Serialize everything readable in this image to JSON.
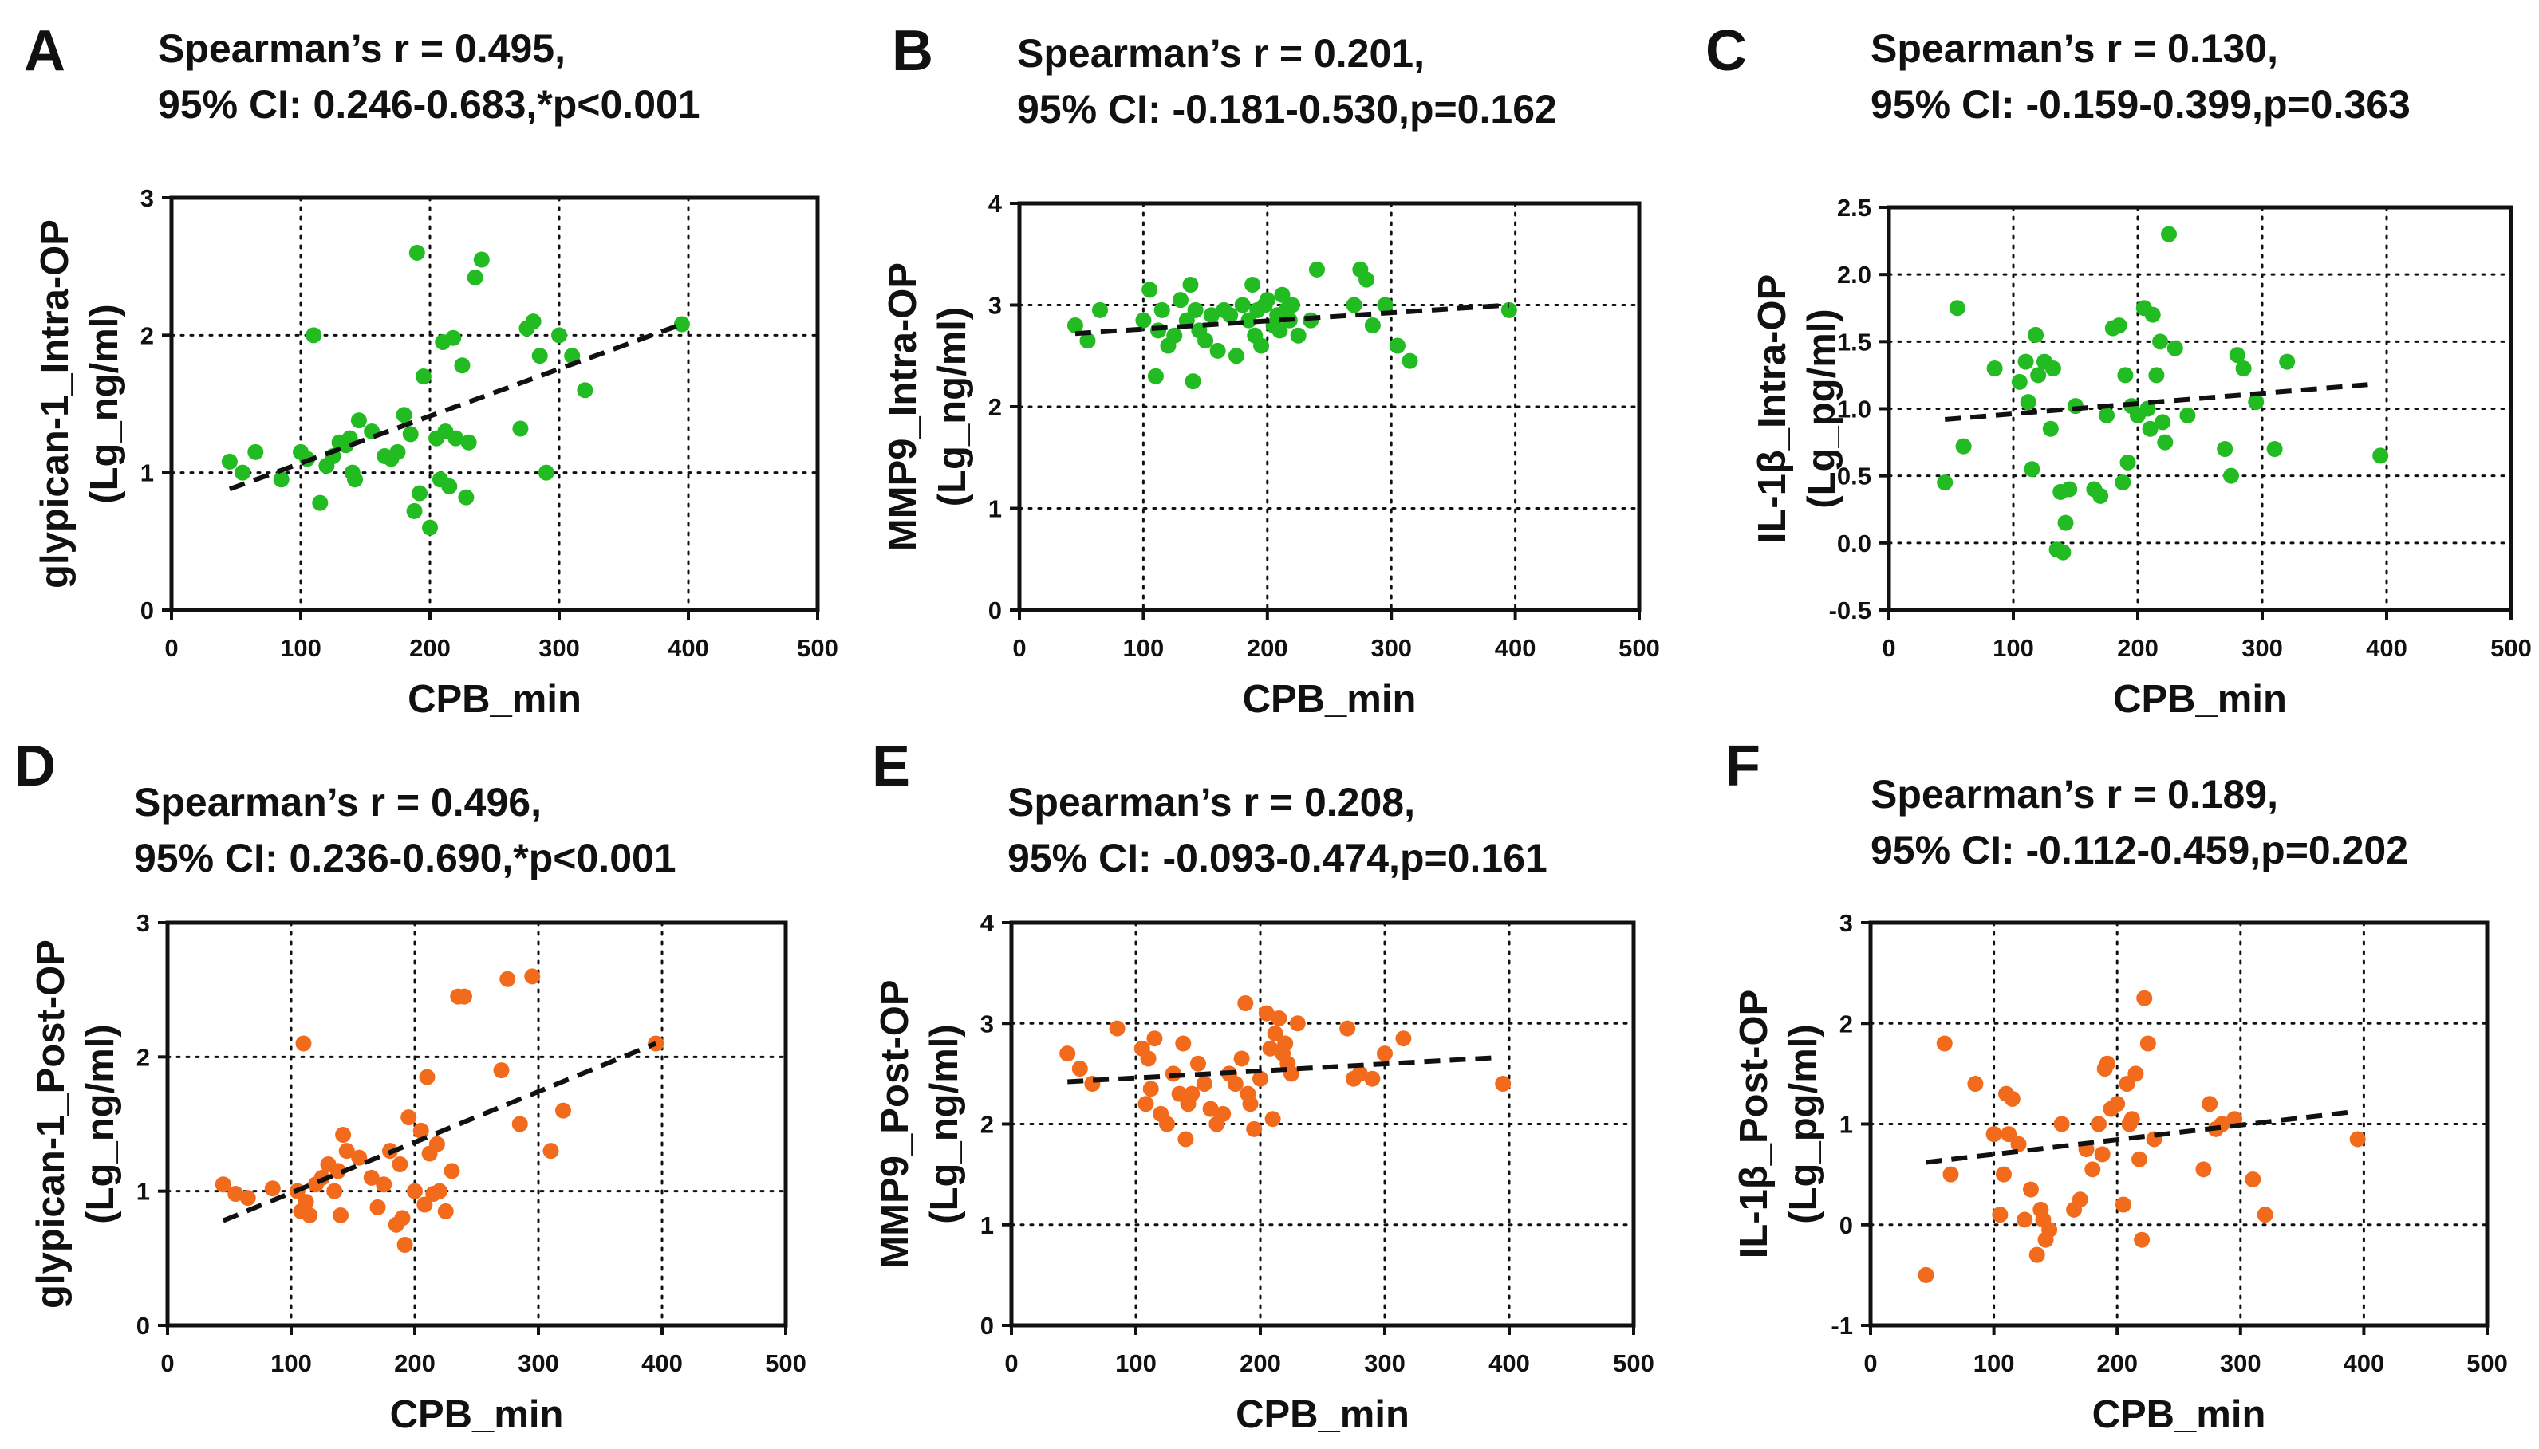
{
  "colors": {
    "intra_op_points": "#22bb22",
    "post_op_points": "#f26b1d",
    "fit_line": "#111111"
  },
  "chart_data": [
    {
      "panel": "A",
      "type": "scatter",
      "stats": [
        "Spearman’s r = 0.495,",
        "95% CI: 0.246-0.683,*p<0.001"
      ],
      "xlabel": "CPB_min",
      "ylabel": [
        "glypican-1_Intra-OP",
        "(Lg_ng/ml)"
      ],
      "xlim": [
        0,
        500
      ],
      "ylim": [
        0,
        3
      ],
      "xticks": [
        0,
        100,
        200,
        300,
        400,
        500
      ],
      "yticks": [
        0,
        1,
        2,
        3
      ],
      "series": [
        {
          "name": "Intra-OP",
          "color": "#22bb22",
          "x": [
            45,
            55,
            65,
            85,
            100,
            105,
            110,
            115,
            120,
            125,
            130,
            135,
            138,
            140,
            142,
            145,
            155,
            165,
            170,
            175,
            180,
            185,
            188,
            190,
            192,
            195,
            200,
            205,
            208,
            210,
            212,
            215,
            218,
            220,
            225,
            228,
            230,
            235,
            240,
            270,
            275,
            280,
            285,
            290,
            300,
            310,
            320,
            395
          ],
          "y": [
            1.08,
            1.0,
            1.15,
            0.95,
            1.15,
            1.1,
            2.0,
            0.78,
            1.05,
            1.12,
            1.22,
            1.2,
            1.25,
            1.0,
            0.95,
            1.38,
            1.3,
            1.12,
            1.1,
            1.15,
            1.42,
            1.28,
            0.72,
            2.6,
            0.85,
            1.7,
            0.6,
            1.25,
            0.95,
            1.95,
            1.3,
            0.9,
            1.98,
            1.25,
            1.78,
            0.82,
            1.22,
            2.42,
            2.55,
            1.32,
            2.05,
            2.1,
            1.85,
            1.0,
            2.0,
            1.85,
            1.6,
            2.08
          ]
        }
      ],
      "fit_line": {
        "x": [
          45,
          395
        ],
        "y": [
          0.88,
          2.08
        ]
      }
    },
    {
      "panel": "B",
      "type": "scatter",
      "stats": [
        "Spearman’s r = 0.201,",
        "95% CI: -0.181-0.530,p=0.162"
      ],
      "xlabel": "CPB_min",
      "ylabel": [
        "MMP9_Intra-OP",
        "(Lg_ng/ml)"
      ],
      "xlim": [
        0,
        500
      ],
      "ylim": [
        0,
        4
      ],
      "xticks": [
        0,
        100,
        200,
        300,
        400,
        500
      ],
      "yticks": [
        0,
        1,
        2,
        3,
        4
      ],
      "series": [
        {
          "name": "Intra-OP",
          "color": "#22bb22",
          "x": [
            45,
            55,
            65,
            100,
            105,
            110,
            112,
            115,
            120,
            125,
            130,
            135,
            138,
            140,
            142,
            145,
            150,
            155,
            160,
            165,
            170,
            175,
            180,
            185,
            188,
            190,
            192,
            195,
            198,
            200,
            205,
            208,
            210,
            212,
            215,
            218,
            220,
            225,
            235,
            240,
            270,
            275,
            280,
            285,
            295,
            305,
            315,
            395
          ],
          "y": [
            2.8,
            2.65,
            2.95,
            2.85,
            3.15,
            2.3,
            2.75,
            2.95,
            2.6,
            2.7,
            3.05,
            2.85,
            3.2,
            2.25,
            2.95,
            2.75,
            2.65,
            2.9,
            2.55,
            2.95,
            2.9,
            2.5,
            3.0,
            2.85,
            3.2,
            2.7,
            2.95,
            2.6,
            3.0,
            3.05,
            2.8,
            2.9,
            2.75,
            3.1,
            2.95,
            2.85,
            3.0,
            2.7,
            2.85,
            3.35,
            3.0,
            3.35,
            3.25,
            2.8,
            3.0,
            2.6,
            2.45,
            2.95
          ]
        }
      ],
      "fit_line": {
        "x": [
          45,
          395
        ],
        "y": [
          2.72,
          3.0
        ]
      }
    },
    {
      "panel": "C",
      "type": "scatter",
      "stats": [
        "Spearman’s r = 0.130,",
        "95% CI: -0.159-0.399,p=0.363"
      ],
      "xlabel": "CPB_min",
      "ylabel": [
        "IL-1β_Intra-OP",
        "(Lg_pg/ml)"
      ],
      "xlim": [
        0,
        500
      ],
      "ylim": [
        -0.5,
        2.5
      ],
      "xticks": [
        0,
        100,
        200,
        300,
        400,
        500
      ],
      "yticks": [
        -0.5,
        0.0,
        0.5,
        1.0,
        1.5,
        2.0,
        2.5
      ],
      "ytick_labels": [
        "-0.5",
        "0.0",
        "0.5",
        "1.0",
        "1.5",
        "2.0",
        "2.5"
      ],
      "series": [
        {
          "name": "Intra-OP",
          "color": "#22bb22",
          "x": [
            45,
            55,
            60,
            85,
            105,
            110,
            112,
            115,
            118,
            120,
            125,
            130,
            132,
            135,
            138,
            140,
            142,
            145,
            150,
            165,
            170,
            175,
            180,
            185,
            188,
            190,
            192,
            195,
            200,
            205,
            208,
            210,
            212,
            215,
            218,
            220,
            222,
            225,
            230,
            240,
            270,
            275,
            280,
            285,
            295,
            310,
            320,
            395
          ],
          "y": [
            0.45,
            1.75,
            0.72,
            1.3,
            1.2,
            1.35,
            1.05,
            0.55,
            1.55,
            1.25,
            1.35,
            0.85,
            1.3,
            -0.05,
            0.38,
            -0.07,
            0.15,
            0.4,
            1.02,
            0.4,
            0.35,
            0.95,
            1.6,
            1.62,
            0.45,
            1.25,
            0.6,
            1.02,
            0.95,
            1.75,
            1.0,
            0.85,
            1.7,
            1.25,
            1.5,
            0.9,
            0.75,
            2.3,
            1.45,
            0.95,
            0.7,
            0.5,
            1.4,
            1.3,
            1.05,
            0.7,
            1.35,
            0.65
          ]
        }
      ],
      "fit_line": {
        "x": [
          45,
          385
        ],
        "y": [
          0.92,
          1.18
        ]
      }
    },
    {
      "panel": "D",
      "type": "scatter",
      "stats": [
        "Spearman’s r = 0.496,",
        "95% CI: 0.236-0.690,*p<0.001"
      ],
      "xlabel": "CPB_min",
      "ylabel": [
        "glypican-1_Post-OP",
        "(Lg_ng/ml)"
      ],
      "xlim": [
        0,
        500
      ],
      "ylim": [
        0,
        3
      ],
      "xticks": [
        0,
        100,
        200,
        300,
        400,
        500
      ],
      "yticks": [
        0,
        1,
        2,
        3
      ],
      "series": [
        {
          "name": "Post-OP",
          "color": "#f26b1d",
          "x": [
            45,
            55,
            65,
            85,
            105,
            108,
            110,
            112,
            115,
            120,
            125,
            130,
            135,
            138,
            140,
            142,
            145,
            155,
            165,
            170,
            175,
            180,
            185,
            188,
            190,
            192,
            195,
            200,
            205,
            208,
            210,
            212,
            215,
            218,
            220,
            225,
            230,
            235,
            240,
            270,
            275,
            285,
            295,
            310,
            320,
            395
          ],
          "y": [
            1.05,
            0.98,
            0.95,
            1.02,
            1.0,
            0.85,
            2.1,
            0.92,
            0.82,
            1.05,
            1.1,
            1.2,
            1.0,
            1.15,
            0.82,
            1.42,
            1.3,
            1.25,
            1.1,
            0.88,
            1.05,
            1.3,
            0.75,
            1.2,
            0.8,
            0.6,
            1.55,
            1.0,
            1.45,
            0.9,
            1.85,
            1.28,
            0.98,
            1.35,
            1.0,
            0.85,
            1.15,
            2.45,
            2.45,
            1.9,
            2.58,
            1.5,
            2.6,
            1.3,
            1.6,
            2.1
          ]
        }
      ],
      "fit_line": {
        "x": [
          45,
          395
        ],
        "y": [
          0.78,
          2.1
        ]
      }
    },
    {
      "panel": "E",
      "type": "scatter",
      "stats": [
        "Spearman’s r = 0.208,",
        "95% CI: -0.093-0.474,p=0.161"
      ],
      "xlabel": "CPB_min",
      "ylabel": [
        "MMP9_Post-OP",
        "(Lg_ng/ml)"
      ],
      "xlim": [
        0,
        500
      ],
      "ylim": [
        0,
        4
      ],
      "xticks": [
        0,
        100,
        200,
        300,
        400,
        500
      ],
      "yticks": [
        0,
        1,
        2,
        3,
        4
      ],
      "series": [
        {
          "name": "Post-OP",
          "color": "#f26b1d",
          "x": [
            45,
            55,
            65,
            85,
            105,
            108,
            110,
            112,
            115,
            120,
            125,
            130,
            135,
            138,
            140,
            142,
            145,
            150,
            155,
            160,
            165,
            170,
            175,
            180,
            185,
            188,
            190,
            192,
            195,
            200,
            205,
            208,
            210,
            212,
            215,
            218,
            220,
            222,
            225,
            230,
            270,
            275,
            280,
            290,
            300,
            315,
            395
          ],
          "y": [
            2.7,
            2.55,
            2.4,
            2.95,
            2.75,
            2.2,
            2.65,
            2.35,
            2.85,
            2.1,
            2.0,
            2.5,
            2.3,
            2.8,
            1.85,
            2.2,
            2.3,
            2.6,
            2.4,
            2.15,
            2.0,
            2.1,
            2.5,
            2.4,
            2.65,
            3.2,
            2.3,
            2.2,
            1.95,
            2.45,
            3.1,
            2.75,
            2.05,
            2.9,
            3.05,
            2.7,
            2.8,
            2.6,
            2.5,
            3.0,
            2.95,
            2.45,
            2.5,
            2.45,
            2.7,
            2.85,
            2.4
          ]
        }
      ],
      "fit_line": {
        "x": [
          45,
          390
        ],
        "y": [
          2.42,
          2.66
        ]
      }
    },
    {
      "panel": "F",
      "type": "scatter",
      "stats": [
        "Spearman’s r = 0.189,",
        "95% CI: -0.112-0.459,p=0.202"
      ],
      "xlabel": "CPB_min",
      "ylabel": [
        "IL-1β_Post-OP",
        "(Lg_pg/ml)"
      ],
      "xlim": [
        0,
        500
      ],
      "ylim": [
        -1,
        3
      ],
      "xticks": [
        0,
        100,
        200,
        300,
        400,
        500
      ],
      "yticks": [
        -1,
        0,
        1,
        2,
        3
      ],
      "series": [
        {
          "name": "Post-OP",
          "color": "#f26b1d",
          "x": [
            45,
            60,
            65,
            85,
            100,
            105,
            108,
            110,
            112,
            115,
            120,
            125,
            130,
            135,
            138,
            140,
            142,
            145,
            155,
            165,
            170,
            175,
            180,
            185,
            188,
            190,
            192,
            195,
            200,
            205,
            208,
            210,
            212,
            215,
            218,
            220,
            222,
            225,
            230,
            270,
            275,
            280,
            285,
            295,
            310,
            320,
            395
          ],
          "y": [
            -0.5,
            1.8,
            0.5,
            1.4,
            0.9,
            0.1,
            0.5,
            1.3,
            0.9,
            1.25,
            0.8,
            0.05,
            0.35,
            -0.3,
            0.15,
            0.05,
            -0.15,
            -0.05,
            1.0,
            0.15,
            0.25,
            0.75,
            0.55,
            1.0,
            0.7,
            1.55,
            1.6,
            1.15,
            1.2,
            0.2,
            1.4,
            1.0,
            1.05,
            1.5,
            0.65,
            -0.15,
            2.25,
            1.8,
            0.85,
            0.55,
            1.2,
            0.95,
            1.0,
            1.05,
            0.45,
            0.1,
            0.85
          ]
        }
      ],
      "fit_line": {
        "x": [
          45,
          390
        ],
        "y": [
          0.62,
          1.12
        ]
      }
    }
  ]
}
